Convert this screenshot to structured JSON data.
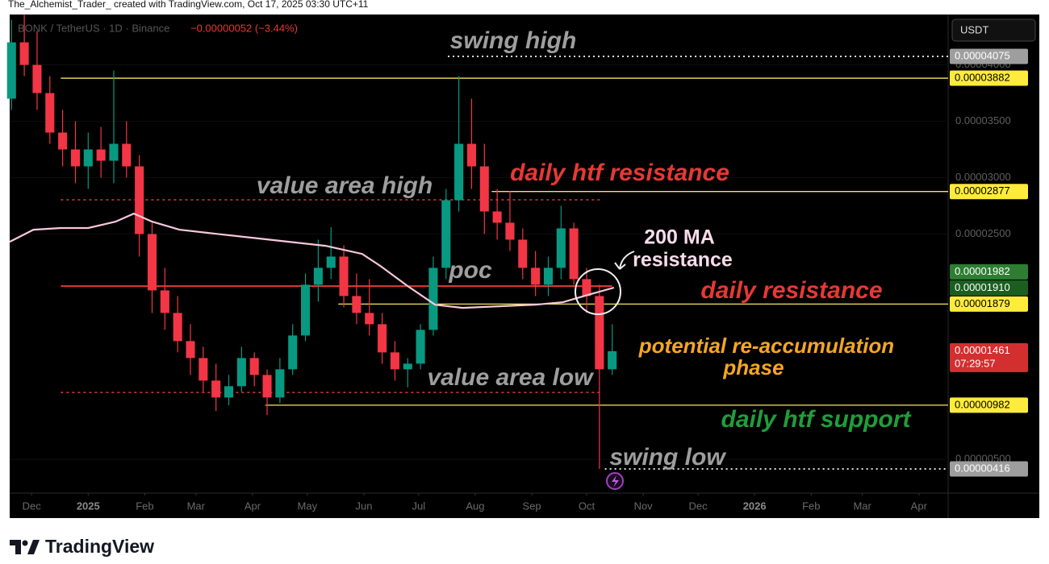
{
  "header": {
    "credit": "The_Alchemist_Trader_ created with TradingView.com, Oct 17, 2025 03:30 UTC+11",
    "symbol": "BONK / TetherUS · 1D · Binance",
    "change": "−0.00000052 (−3.44%)",
    "currency": "USDT",
    "brand": "TradingView"
  },
  "chart_data": {
    "type": "candlestick",
    "up_color": "#089981",
    "down_color": "#f23645",
    "x": [
      -42,
      -35,
      -28,
      -21,
      -14,
      -7,
      0,
      7,
      14,
      21,
      28,
      35,
      42,
      49,
      56,
      63,
      70,
      77,
      84,
      91,
      98,
      105,
      112,
      119,
      126,
      133,
      140,
      147,
      154,
      161,
      168,
      175,
      182,
      189,
      196,
      203,
      210,
      217,
      224,
      231,
      238,
      245,
      252,
      259,
      266,
      273,
      280,
      287
    ],
    "open": [
      3.7e-05,
      4.2e-05,
      4e-05,
      3.75e-05,
      3.4e-05,
      3.25e-05,
      3.1e-05,
      3.25e-05,
      3.15e-05,
      3.3e-05,
      3.1e-05,
      2.5e-05,
      2e-05,
      1.8e-05,
      1.55e-05,
      1.4e-05,
      1.2e-05,
      1.05e-05,
      1.15e-05,
      1.4e-05,
      1.25e-05,
      1.05e-05,
      1.3e-05,
      1.6e-05,
      2.05e-05,
      2.2e-05,
      2.3e-05,
      1.95e-05,
      1.8e-05,
      1.7e-05,
      1.45e-05,
      1.3e-05,
      1.35e-05,
      1.65e-05,
      2.2e-05,
      2.8e-05,
      3.3e-05,
      3.1e-05,
      2.7e-05,
      2.6e-05,
      2.45e-05,
      2.2e-05,
      2.05e-05,
      2.2e-05,
      2.55e-05,
      2.1e-05,
      1.95e-05,
      1.3e-05
    ],
    "high": [
      4.4e-05,
      4.45e-05,
      4.3e-05,
      3.9e-05,
      3.6e-05,
      3.5e-05,
      3.4e-05,
      3.45e-05,
      3.95e-05,
      3.5e-05,
      3.2e-05,
      2.6e-05,
      2.2e-05,
      1.95e-05,
      1.7e-05,
      1.5e-05,
      1.35e-05,
      1.25e-05,
      1.5e-05,
      1.45e-05,
      1.3e-05,
      1.4e-05,
      1.7e-05,
      2.15e-05,
      2.45e-05,
      2.56e-05,
      2.4e-05,
      2.15e-05,
      2.1e-05,
      1.8e-05,
      1.55e-05,
      1.4e-05,
      1.7e-05,
      2.3e-05,
      2.9e-05,
      3.9e-05,
      3.7e-05,
      3.3e-05,
      2.9e-05,
      2.88e-05,
      2.55e-05,
      2.35e-05,
      2.3e-05,
      2.75e-05,
      2.6e-05,
      2.2e-05,
      2.05e-05,
      1.7e-05
    ],
    "low": [
      3.6e-05,
      3.9e-05,
      3.6e-05,
      3.3e-05,
      3.1e-05,
      2.95e-05,
      2.9e-05,
      3e-05,
      2.95e-05,
      3e-05,
      2.3e-05,
      1.8e-05,
      1.65e-05,
      1.45e-05,
      1.25e-05,
      1.1e-05,
      9.3e-06,
      9.8e-06,
      1.1e-05,
      1.15e-05,
      8.93e-06,
      1e-05,
      1.25e-05,
      1.55e-05,
      1.9e-05,
      2.1e-05,
      1.85e-05,
      1.7e-05,
      1.6e-05,
      1.35e-05,
      1.2e-05,
      1.14e-05,
      1.3e-05,
      1.6e-05,
      2.1e-05,
      2.7e-05,
      2.9e-05,
      2.5e-05,
      2.45e-05,
      2.35e-05,
      2.1e-05,
      1.95e-05,
      1.95e-05,
      2.1e-05,
      2.05e-05,
      1.8e-05,
      4.16e-06,
      1.25e-05
    ],
    "close": [
      4.2e-05,
      4e-05,
      3.75e-05,
      3.4e-05,
      3.25e-05,
      3.1e-05,
      3.25e-05,
      3.15e-05,
      3.3e-05,
      3.1e-05,
      2.5e-05,
      2e-05,
      1.8e-05,
      1.55e-05,
      1.4e-05,
      1.2e-05,
      1.05e-05,
      1.15e-05,
      1.4e-05,
      1.25e-05,
      1.05e-05,
      1.3e-05,
      1.6e-05,
      2.05e-05,
      2.2e-05,
      2.3e-05,
      1.95e-05,
      1.8e-05,
      1.7e-05,
      1.45e-05,
      1.3e-05,
      1.35e-05,
      1.65e-05,
      2.2e-05,
      2.8e-05,
      3.3e-05,
      3.1e-05,
      2.7e-05,
      2.6e-05,
      2.45e-05,
      2.2e-05,
      2.05e-05,
      2.2e-05,
      2.55e-05,
      2.1e-05,
      1.95e-05,
      1.3e-05,
      1.461e-05
    ],
    "xlim": [
      -43,
      471
    ],
    "ylim": [
      2.02e-06,
      4.447e-05
    ],
    "xticks": [
      {
        "value": -31,
        "label": "Dec"
      },
      {
        "value": 0,
        "label": "2025"
      },
      {
        "value": 31,
        "label": "Feb"
      },
      {
        "value": 59,
        "label": "Mar"
      },
      {
        "value": 90,
        "label": "Apr"
      },
      {
        "value": 120,
        "label": "May"
      },
      {
        "value": 151,
        "label": "Jun"
      },
      {
        "value": 181,
        "label": "Jul"
      },
      {
        "value": 212,
        "label": "Aug"
      },
      {
        "value": 243,
        "label": "Sep"
      },
      {
        "value": 273,
        "label": "Oct"
      },
      {
        "value": 304,
        "label": "Nov"
      },
      {
        "value": 334,
        "label": "Dec"
      },
      {
        "value": 365,
        "label": "2026"
      },
      {
        "value": 396,
        "label": "Feb"
      },
      {
        "value": 424,
        "label": "Mar"
      },
      {
        "value": 455,
        "label": "Apr"
      }
    ],
    "yticks": [
      {
        "value": 5e-06,
        "label": "0.00000500"
      },
      {
        "value": 2.5e-05,
        "label": "0.00002500"
      },
      {
        "value": 3e-05,
        "label": "0.00003000"
      },
      {
        "value": 3.5e-05,
        "label": "0.00003500"
      },
      {
        "value": 4e-05,
        "label": "0.00004000"
      }
    ],
    "moving_average": {
      "color": "#f8c8dc",
      "x": [
        -43,
        -30,
        -15,
        0,
        15,
        25,
        35,
        50,
        70,
        90,
        110,
        130,
        150,
        160,
        175,
        190,
        205,
        225,
        245,
        260,
        275,
        288
      ],
      "values": [
        2.431e-05,
        2.538e-05,
        2.553e-05,
        2.553e-05,
        2.61e-05,
        2.681e-05,
        2.61e-05,
        2.538e-05,
        2.502e-05,
        2.467e-05,
        2.431e-05,
        2.395e-05,
        2.324e-05,
        2.217e-05,
        2.038e-05,
        1.873e-05,
        1.845e-05,
        1.859e-05,
        1.873e-05,
        1.895e-05,
        1.966e-05,
        2.024e-05
      ]
    },
    "levels": [
      {
        "value": 4.075e-05,
        "label": "0.00004075",
        "from": 197,
        "color": "#dddddd",
        "dash": true,
        "badge": "#9e9e9e",
        "badge_text": "#ffffff"
      },
      {
        "value": 3.882e-05,
        "label": "0.00003882",
        "from": -15,
        "color": "#f5e663",
        "dash": false,
        "badge": "#ffeb3b",
        "badge_text": "#000000"
      },
      {
        "value": 2.877e-05,
        "label": "0.00002877",
        "from": 221,
        "color": "#f5e663",
        "dash": false,
        "badge": "#ffeb3b",
        "badge_text": "#000000"
      },
      {
        "value": 1.879e-05,
        "label": "0.00001879",
        "from": 137,
        "color": "#f5e663",
        "dash": false,
        "badge": "#ffeb3b",
        "badge_text": "#000000"
      },
      {
        "value": 9.82e-06,
        "label": "0.00000982",
        "from": 97,
        "color": "#f5e663",
        "dash": false,
        "badge": "#ffeb3b",
        "badge_text": "#000000"
      },
      {
        "value": 4.16e-06,
        "label": "0.00000416",
        "from": 283,
        "color": "#dddddd",
        "dash": true,
        "badge": "#9e9e9e",
        "badge_text": "#ffffff"
      }
    ],
    "zones": [
      {
        "value": 2.803e-05,
        "from": -15,
        "to": 282,
        "color": "#e53935",
        "dash": true
      },
      {
        "value": 2.038e-05,
        "from": -15,
        "to": 287,
        "color": "#e53935",
        "dash": false
      },
      {
        "value": 1.094e-05,
        "from": -15,
        "to": 282,
        "color": "#e53935",
        "dash": true
      }
    ],
    "markers": [
      {
        "value": 1.982e-05,
        "label": "0.00001982",
        "badge": "#2e7d32",
        "badge_text": "#ffffff"
      },
      {
        "value": 1.91e-05,
        "label": "0.00001910",
        "badge": "#1b5e20",
        "badge_text": "#ffffff"
      }
    ],
    "last_price": {
      "value": 1.461e-05,
      "label": "0.00001461",
      "countdown": "07:29:57",
      "badge": "#d32f2f"
    },
    "annotations": [
      {
        "lines": [
          "swing high"
        ],
        "color": "#9e9e9e"
      },
      {
        "lines": [
          "daily htf resistance"
        ],
        "color": "#e53935"
      },
      {
        "lines": [
          "value area high"
        ],
        "color": "#9e9e9e"
      },
      {
        "lines": [
          "200 MA",
          "resistance"
        ],
        "color": "#f8dcea"
      },
      {
        "lines": [
          "poc"
        ],
        "color": "#9e9e9e"
      },
      {
        "lines": [
          "daily resistance"
        ],
        "color": "#e53935"
      },
      {
        "lines": [
          "potential re-accumulation",
          "phase"
        ],
        "color": "#f5a623"
      },
      {
        "lines": [
          "value area low"
        ],
        "color": "#9e9e9e"
      },
      {
        "lines": [
          "daily htf support"
        ],
        "color": "#1e9e3a"
      },
      {
        "lines": [
          "swing low"
        ],
        "color": "#9e9e9e"
      }
    ]
  }
}
